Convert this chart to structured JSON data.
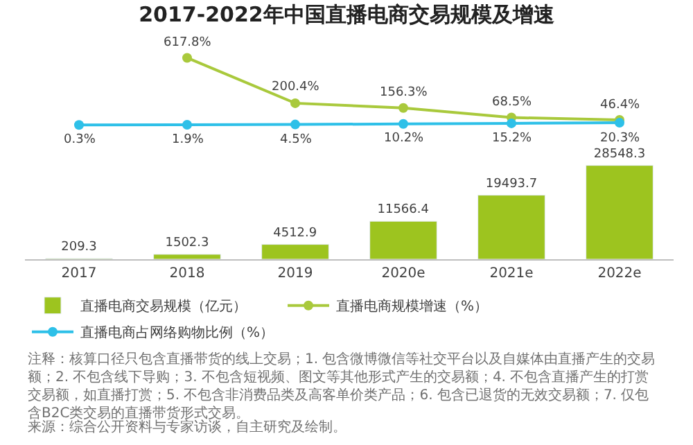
{
  "chart_data": [
    {
      "type": "line",
      "title": "2017-2022年中国直播电商交易规模及增速",
      "categories": [
        null,
        null,
        null,
        null,
        null,
        null
      ],
      "series": [
        {
          "name": "直播电商规模增速（%）",
          "color": "#a9c93c",
          "values": [
            null,
            617.8,
            200.4,
            156.3,
            68.5,
            46.4
          ],
          "value_labels": [
            null,
            "617.8%",
            "200.4%",
            "156.3%",
            "68.5%",
            "46.4%"
          ]
        },
        {
          "name": "直播电商占网络购物比例（%）",
          "color": "#2ec0e8",
          "values": [
            0.3,
            1.9,
            4.5,
            10.2,
            15.2,
            20.3
          ],
          "value_labels": [
            "0.3%",
            "1.9%",
            "4.5%",
            "10.2%",
            "15.2%",
            "20.3%"
          ]
        }
      ],
      "marker": "circle",
      "line_style": "solid",
      "legend": "bottom",
      "tick_labels": false
    },
    {
      "type": "bar",
      "categories": [
        "2017",
        "2018",
        "2019",
        "2020e",
        "2021e",
        "2022e"
      ],
      "series": [
        {
          "name": "直播电商交易规模（亿元）",
          "color": "#9dc41f",
          "values": [
            209.3,
            1502.3,
            4512.9,
            11566.4,
            19493.7,
            28548.3
          ],
          "value_labels": [
            "209.3",
            "1502.3",
            "4512.9",
            "11566.4",
            "19493.7",
            "28548.3"
          ]
        }
      ],
      "legend": "bottom",
      "tick_labels": "x",
      "annotations": [
        "注释：核算口径只包含直播带货的线上交易；1. 包含微博微信等社交平台以及自媒体由直播产生的交易额；2. 不包含线下导购；3. 不包含短视频、图文等其他形式产生的交易额；4. 不包含直播产生的打赏交易额，如直播打赏；5. 不包含非消费品类及高客单价类产品；6. 包含已退货的无效交易额；7. 仅包含B2C类交易的直播带货形式交易。",
        "来源：综合公开资料与专家访谈，自主研究及绘制。"
      ]
    }
  ]
}
